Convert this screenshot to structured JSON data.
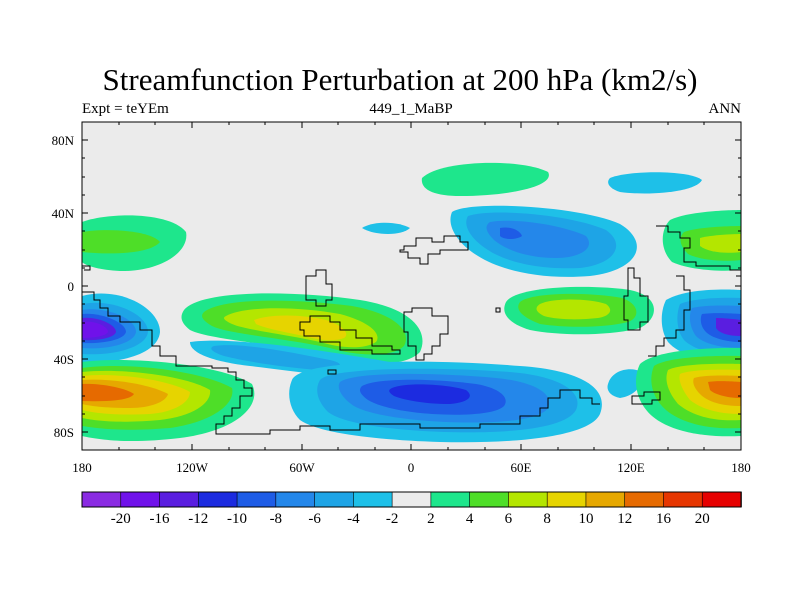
{
  "title": "Streamfunction Perturbation at 200 hPa (km2/s)",
  "subtitle_left": "Expt = teYEm",
  "subtitle_center": "449_1_MaBP",
  "subtitle_right": "ANN",
  "lat_labels": [
    "80N",
    "40N",
    "0",
    "40S",
    "80S"
  ],
  "lon_labels": [
    "180",
    "120W",
    "60W",
    "0",
    "60E",
    "120E",
    "180"
  ],
  "colorbar": {
    "colors": [
      "#8a2be2",
      "#7012ea",
      "#5a1ee0",
      "#1c2be0",
      "#1e5ce6",
      "#2487ea",
      "#1ea4e6",
      "#1ec0e8",
      "#ebebeb",
      "#1ee68c",
      "#4ede28",
      "#b4e600",
      "#e6d400",
      "#e6a800",
      "#e66a00",
      "#e63600",
      "#e60000"
    ],
    "labels": [
      "-20",
      "-16",
      "-12",
      "-10",
      "-8",
      "-6",
      "-4",
      "-2",
      "2",
      "4",
      "6",
      "8",
      "10",
      "12",
      "16",
      "20"
    ]
  },
  "colors": {
    "background": "#ebebeb",
    "coast": "#000000"
  }
}
